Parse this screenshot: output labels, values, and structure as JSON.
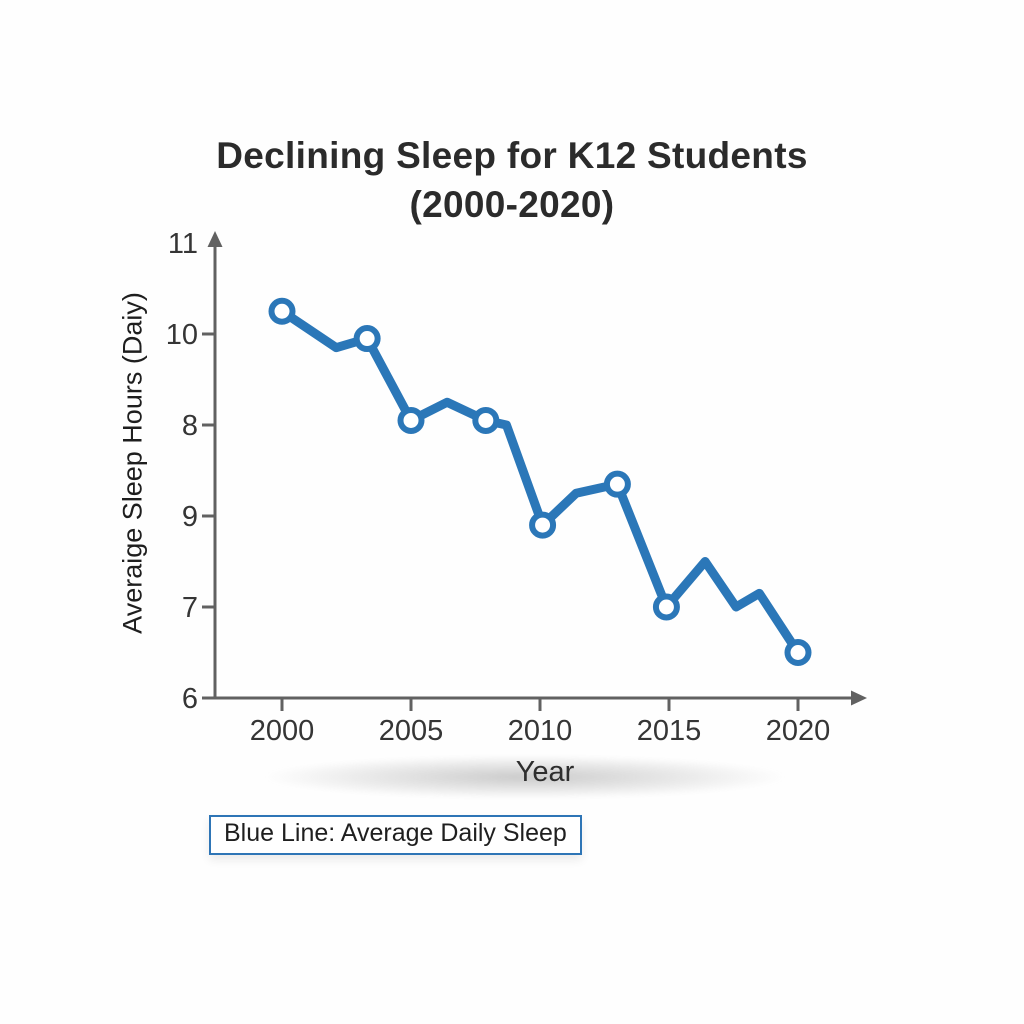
{
  "title": {
    "line1": "Declining Sleep for K12 Students",
    "line2": "(2000-2020)"
  },
  "axes": {
    "y_label": "Averaige Sleep Hours (Daiy)",
    "x_label": "Year"
  },
  "legend": {
    "text": "Blue Line: Average Daily Sleep",
    "border_color": "#2e75b6",
    "position": "bottom-left"
  },
  "colors": {
    "line": "#2b77b8",
    "marker_fill": "#ffffff",
    "axis": "#616161",
    "tick_text": "#353535",
    "title_text": "#2b2b2b",
    "background": "#fefefe"
  },
  "chart_data": {
    "type": "line",
    "title": "Declining Sleep for K12 Students (2000-2020)",
    "xlabel": "Year",
    "ylabel": "Averaige Sleep Hours (Daiy)",
    "legend_caption": "Blue Line: Average Daily Sleep",
    "grid": false,
    "xlim": [
      1997.4,
      2022.6
    ],
    "ylim": [
      6,
      11
    ],
    "x_ticks": [
      {
        "label": "2000",
        "value": 2000
      },
      {
        "label": "2005",
        "value": 2005
      },
      {
        "label": "2010",
        "value": 2010
      },
      {
        "label": "2015",
        "value": 2015
      },
      {
        "label": "2020",
        "value": 2020
      }
    ],
    "y_ticks": [
      {
        "label": "11",
        "value": 11,
        "tick": false
      },
      {
        "label": "10",
        "value": 10,
        "tick": true
      },
      {
        "label": "8",
        "value": 9,
        "tick": true
      },
      {
        "label": "9",
        "value": 8,
        "tick": true
      },
      {
        "label": "7",
        "value": 7,
        "tick": true
      },
      {
        "label": "6",
        "value": 6,
        "tick": true
      }
    ],
    "series": [
      {
        "name": "Average Daily Sleep",
        "color": "#2b77b8",
        "points": [
          {
            "x": 2000.0,
            "y": 10.25,
            "marker": true
          },
          {
            "x": 2002.1,
            "y": 9.85,
            "marker": false
          },
          {
            "x": 2003.3,
            "y": 9.95,
            "marker": true
          },
          {
            "x": 2005.0,
            "y": 9.05,
            "marker": true
          },
          {
            "x": 2006.4,
            "y": 9.25,
            "marker": false
          },
          {
            "x": 2007.9,
            "y": 9.05,
            "marker": true
          },
          {
            "x": 2008.7,
            "y": 9.0,
            "marker": false
          },
          {
            "x": 2010.1,
            "y": 7.9,
            "marker": true
          },
          {
            "x": 2011.4,
            "y": 8.25,
            "marker": false
          },
          {
            "x": 2013.0,
            "y": 8.35,
            "marker": true
          },
          {
            "x": 2014.9,
            "y": 7.0,
            "marker": true
          },
          {
            "x": 2016.4,
            "y": 7.5,
            "marker": false
          },
          {
            "x": 2017.6,
            "y": 7.0,
            "marker": false
          },
          {
            "x": 2018.5,
            "y": 7.15,
            "marker": false
          },
          {
            "x": 2020.0,
            "y": 6.5,
            "marker": true
          }
        ]
      }
    ]
  }
}
